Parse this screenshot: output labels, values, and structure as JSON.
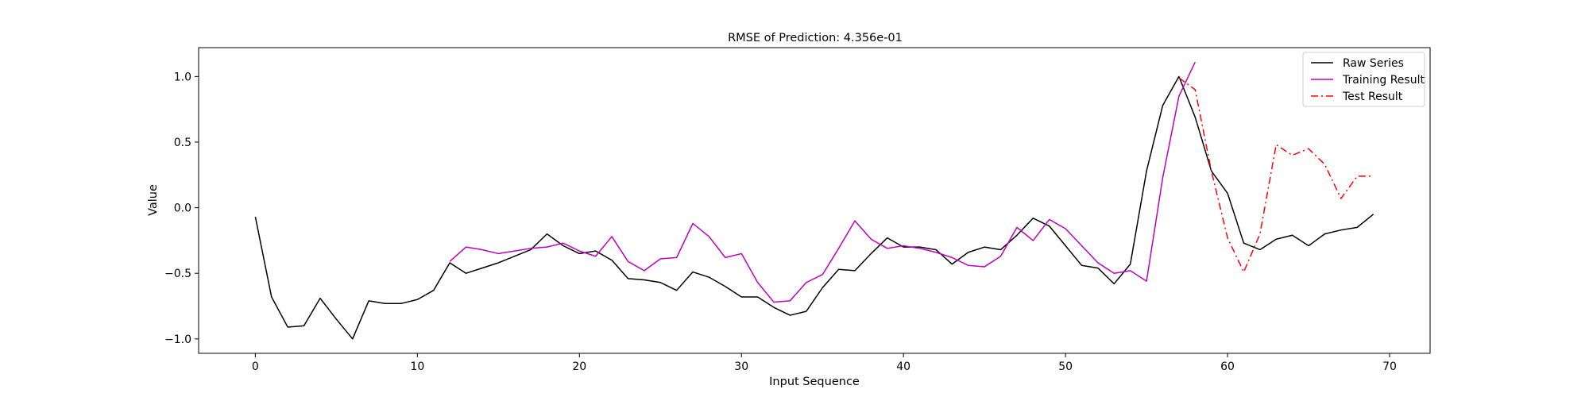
{
  "chart_data": {
    "type": "line",
    "title": "RMSE of Prediction: 4.356e-01",
    "xlabel": "Input Sequence",
    "ylabel": "Value",
    "xlim": [
      -3.5,
      72.5
    ],
    "ylim": [
      -1.11,
      1.22
    ],
    "xticks": [
      0,
      10,
      20,
      30,
      40,
      50,
      60,
      70
    ],
    "yticks": [
      -1.0,
      -0.5,
      0.0,
      0.5,
      1.0
    ],
    "ytick_labels": [
      "−1.0",
      "−0.5",
      "0.0",
      "0.5",
      "1.0"
    ],
    "grid": false,
    "legend_position": "top-right",
    "series": [
      {
        "name": "Raw Series",
        "color": "#000000",
        "style": "solid",
        "x_start": 0,
        "values": [
          -0.07,
          -0.68,
          -0.91,
          -0.9,
          -0.69,
          -0.85,
          -1.0,
          -0.71,
          -0.73,
          -0.73,
          -0.7,
          -0.63,
          -0.42,
          -0.5,
          -0.46,
          -0.42,
          -0.37,
          -0.32,
          -0.2,
          -0.29,
          -0.35,
          -0.33,
          -0.4,
          -0.54,
          -0.55,
          -0.57,
          -0.63,
          -0.49,
          -0.53,
          -0.6,
          -0.68,
          -0.68,
          -0.76,
          -0.82,
          -0.79,
          -0.61,
          -0.47,
          -0.48,
          -0.35,
          -0.23,
          -0.3,
          -0.3,
          -0.32,
          -0.43,
          -0.34,
          -0.3,
          -0.32,
          -0.21,
          -0.08,
          -0.14,
          -0.29,
          -0.44,
          -0.46,
          -0.58,
          -0.43,
          0.28,
          0.78,
          1.0,
          0.69,
          0.28,
          0.11,
          -0.27,
          -0.32,
          -0.24,
          -0.21,
          -0.29,
          -0.2,
          -0.17,
          -0.15,
          -0.05
        ]
      },
      {
        "name": "Training Result",
        "color": "#bf00bf",
        "style": "solid",
        "x_start": 12,
        "values": [
          -0.41,
          -0.3,
          -0.32,
          -0.35,
          -0.33,
          -0.31,
          -0.3,
          -0.27,
          -0.33,
          -0.37,
          -0.22,
          -0.41,
          -0.48,
          -0.39,
          -0.38,
          -0.12,
          -0.22,
          -0.38,
          -0.35,
          -0.57,
          -0.72,
          -0.71,
          -0.57,
          -0.51,
          -0.31,
          -0.1,
          -0.24,
          -0.31,
          -0.29,
          -0.31,
          -0.34,
          -0.38,
          -0.44,
          -0.45,
          -0.37,
          -0.15,
          -0.25,
          -0.09,
          -0.16,
          -0.29,
          -0.42,
          -0.5,
          -0.48,
          -0.56,
          0.23,
          0.85,
          1.11
        ]
      },
      {
        "name": "Test Result",
        "color": "#ff0000",
        "style": "dashdot",
        "x_start": 57,
        "values": [
          0.99,
          0.9,
          0.28,
          -0.23,
          -0.49,
          -0.2,
          0.48,
          0.4,
          0.45,
          0.33,
          0.07,
          0.24,
          0.24
        ]
      }
    ]
  }
}
